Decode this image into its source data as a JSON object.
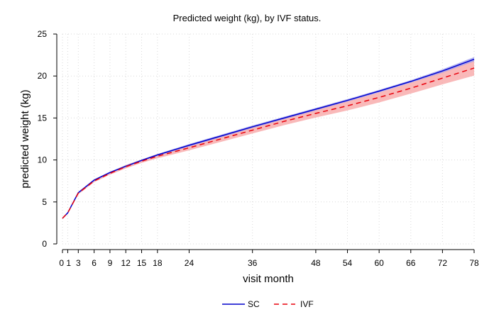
{
  "chart_data": {
    "type": "line",
    "title": "Predicted weight (kg), by IVF status.",
    "xlabel": "visit month",
    "ylabel": "predicted weight (kg)",
    "xlim": [
      0,
      78
    ],
    "ylim": [
      0,
      25
    ],
    "x_ticks": [
      0,
      1,
      3,
      6,
      9,
      12,
      15,
      18,
      24,
      36,
      48,
      54,
      60,
      66,
      72,
      78
    ],
    "x_tick_labels": [
      "0",
      "1",
      "3",
      "6",
      "9",
      "12",
      "15",
      "18",
      "24",
      "36",
      "48",
      "54",
      "60",
      "66",
      "72",
      "78"
    ],
    "y_ticks": [
      0,
      5,
      10,
      15,
      20,
      25
    ],
    "y_tick_labels": [
      "0",
      "5",
      "10",
      "15",
      "20",
      "25"
    ],
    "grid": true,
    "legend_position": "bottom",
    "x": [
      0,
      1,
      3,
      6,
      9,
      12,
      15,
      18,
      24,
      30,
      36,
      42,
      48,
      54,
      60,
      66,
      72,
      78
    ],
    "series": [
      {
        "name": "SC",
        "color": "#0000cc",
        "line_style": "solid",
        "values": [
          3.05,
          3.7,
          6.1,
          7.6,
          8.5,
          9.25,
          9.95,
          10.6,
          11.75,
          12.85,
          13.95,
          15.0,
          16.05,
          17.1,
          18.2,
          19.35,
          20.6,
          22.0
        ],
        "ci_lower": [
          3.0,
          3.65,
          6.0,
          7.5,
          8.4,
          9.15,
          9.85,
          10.5,
          11.6,
          12.7,
          13.8,
          14.85,
          15.9,
          16.95,
          18.05,
          19.2,
          20.4,
          21.75
        ],
        "ci_upper": [
          3.1,
          3.75,
          6.2,
          7.7,
          8.6,
          9.35,
          10.05,
          10.7,
          11.9,
          13.0,
          14.1,
          15.15,
          16.2,
          17.25,
          18.35,
          19.5,
          20.8,
          22.25
        ]
      },
      {
        "name": "IVF",
        "color": "#e8000b",
        "line_style": "dashed",
        "values": [
          3.05,
          3.7,
          6.05,
          7.5,
          8.4,
          9.2,
          9.85,
          10.45,
          11.45,
          12.5,
          13.55,
          14.6,
          15.55,
          16.45,
          17.45,
          18.55,
          19.75,
          20.95
        ],
        "ci_lower": [
          2.95,
          3.6,
          5.9,
          7.35,
          8.25,
          9.0,
          9.65,
          10.2,
          11.15,
          12.15,
          13.15,
          14.15,
          15.05,
          15.9,
          16.85,
          17.9,
          19.0,
          20.05
        ],
        "ci_upper": [
          3.15,
          3.8,
          6.2,
          7.65,
          8.55,
          9.4,
          10.05,
          10.7,
          11.75,
          12.85,
          13.95,
          15.05,
          16.05,
          17.0,
          18.05,
          19.2,
          20.5,
          21.85
        ]
      }
    ],
    "ci_fill_colors": [
      "#9999ee",
      "#f7a8a8"
    ]
  }
}
